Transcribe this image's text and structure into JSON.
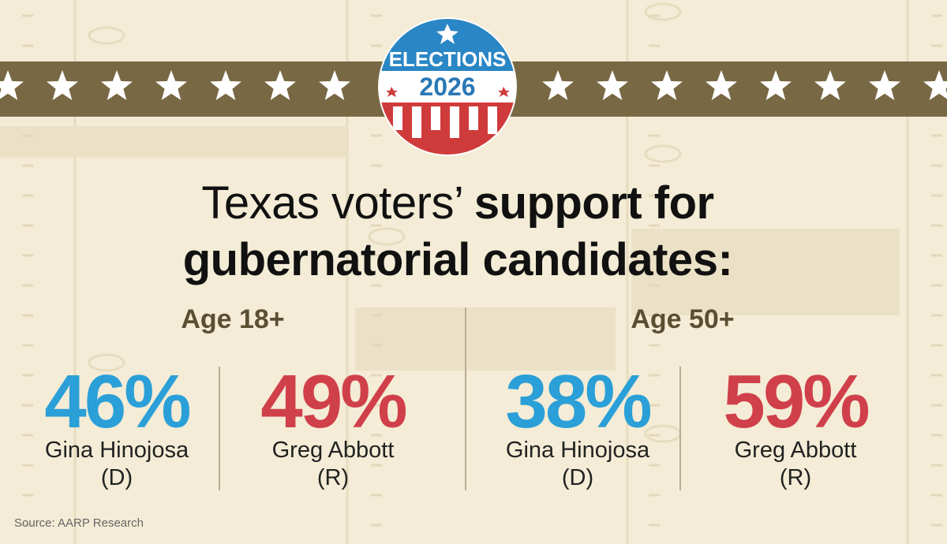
{
  "badge": {
    "top": "ELECTIONS",
    "bottom": "2026"
  },
  "title": {
    "regular": "Texas voters’",
    "bold": "support for gubernatorial candidates:"
  },
  "groups": [
    {
      "label": "Age 18+",
      "candidates": [
        {
          "value": "46%",
          "name": "Gina Hinojosa (D)"
        },
        {
          "value": "49%",
          "name": "Greg Abbott (R)"
        }
      ]
    },
    {
      "label": "Age 50+",
      "candidates": [
        {
          "value": "38%",
          "name": "Gina Hinojosa (D)"
        },
        {
          "value": "59%",
          "name": "Greg Abbott (R)"
        }
      ]
    }
  ],
  "source": "Source: AARP Research"
}
